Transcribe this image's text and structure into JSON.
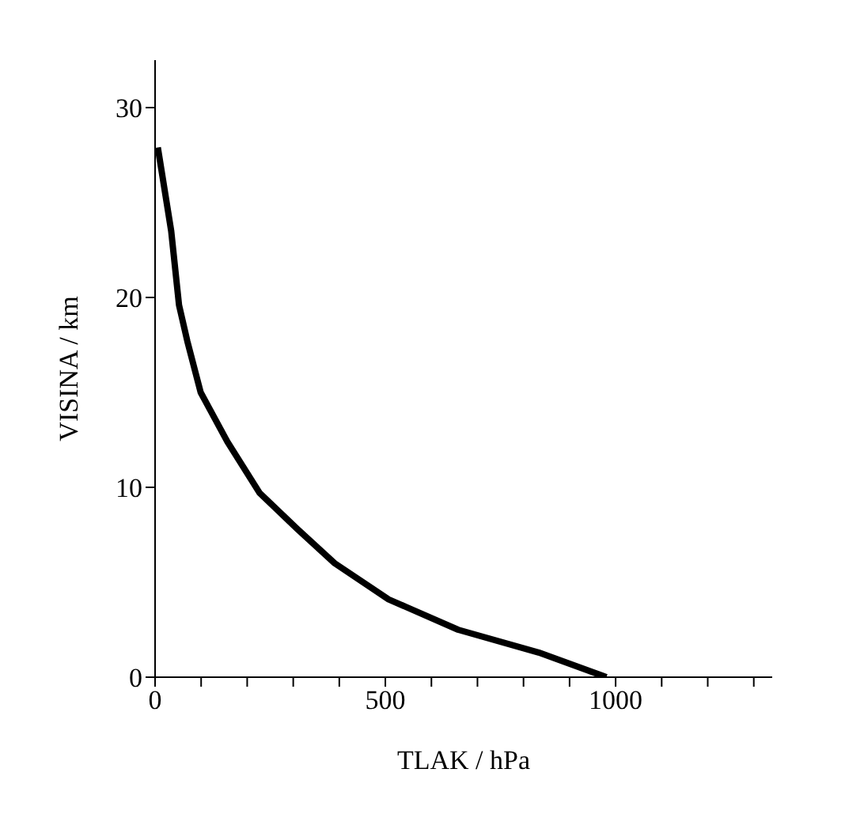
{
  "chart_data": {
    "type": "line",
    "xlabel": "TLAK / hPa",
    "ylabel": "VISINA / km",
    "x": [
      980,
      833,
      658,
      507,
      390,
      309,
      227,
      157,
      99,
      70,
      52,
      35,
      6
    ],
    "series": [
      {
        "color": "#000000",
        "values": [
          0,
          1.3,
          2.5,
          4.1,
          6.0,
          7.8,
          9.7,
          12.4,
          15.0,
          17.7,
          19.6,
          23.5,
          27.9
        ]
      }
    ],
    "xlim": [
      0,
      1340
    ],
    "ylim": [
      0,
      32.5
    ],
    "xticks": [
      0,
      {
        "value": 100,
        "label": null
      },
      {
        "value": 200,
        "label": null
      },
      {
        "value": 300,
        "label": null
      },
      {
        "value": 400,
        "label": null
      },
      500,
      {
        "value": 600,
        "label": null
      },
      {
        "value": 700,
        "label": null
      },
      {
        "value": 800,
        "label": null
      },
      {
        "value": 900,
        "label": null
      },
      1000,
      {
        "value": 1100,
        "label": null
      },
      {
        "value": 1200,
        "label": null
      },
      {
        "value": 1300,
        "label": null
      }
    ],
    "yticks": [
      0,
      10,
      20,
      30
    ],
    "grid": false,
    "legend": false,
    "marker": "none",
    "line_style": "solid"
  }
}
